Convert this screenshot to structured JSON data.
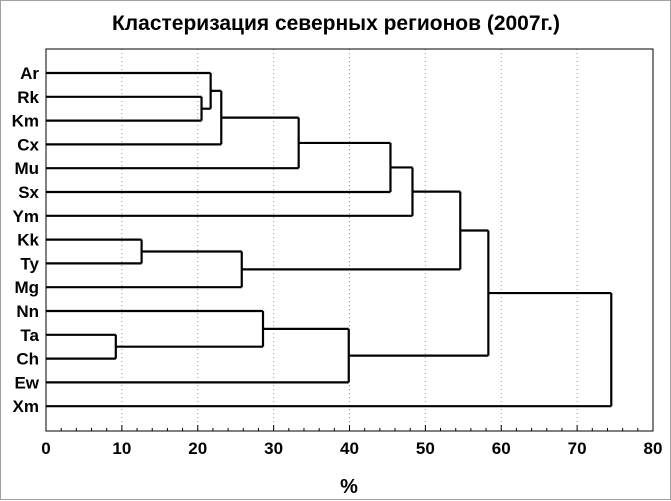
{
  "chart_data": {
    "type": "dendrogram",
    "title": "Кластеризация северных регионов (2007г.)",
    "xlabel": "%",
    "ylabel": "",
    "xlim": [
      0,
      80
    ],
    "x_ticks": [
      0,
      10,
      20,
      30,
      40,
      50,
      60,
      70,
      80
    ],
    "grid": "vertical dotted",
    "leaves": [
      "Ar",
      "Rk",
      "Km",
      "Cx",
      "Mu",
      "Sx",
      "Ym",
      "Kk",
      "Ty",
      "Mg",
      "Nn",
      "Ta",
      "Ch",
      "Ew",
      "Xm"
    ],
    "merges": [
      {
        "left": "Ta",
        "right": "Ch",
        "height": 9.2
      },
      {
        "left": "Kk",
        "right": "Ty",
        "height": 12.6
      },
      {
        "left": "Rk",
        "right": "Km",
        "height": 20.5
      },
      {
        "left": "Ar",
        "right": "Rk+Km",
        "height": 21.7
      },
      {
        "left": "Ar+Rk+Km",
        "right": "Cx",
        "height": 23.1
      },
      {
        "left": "Kk+Ty",
        "right": "Mg",
        "height": 25.8
      },
      {
        "left": "Nn",
        "right": "Ta+Ch",
        "height": 28.6
      },
      {
        "left": "Ar+Rk+Km+Cx",
        "right": "Mu",
        "height": 33.3
      },
      {
        "left": "Nn+Ta+Ch",
        "right": "Ew",
        "height": 39.9
      },
      {
        "left": "Ar+Rk+Km+Cx+Mu",
        "right": "Sx",
        "height": 45.4
      },
      {
        "left": "Ar+Rk+Km+Cx+Mu+Sx",
        "right": "Ym",
        "height": 48.3
      },
      {
        "left": "Ar+Rk+Km+Cx+Mu+Sx+Ym",
        "right": "Kk+Ty+Mg",
        "height": 54.6
      },
      {
        "left": "Ar+Rk+Km+Cx+Mu+Sx+Ym+Kk+Ty+Mg",
        "right": "Nn+Ta+Ch+Ew",
        "height": 58.3
      },
      {
        "left": "all-but-Xm",
        "right": "Xm",
        "height": 74.5
      }
    ]
  }
}
